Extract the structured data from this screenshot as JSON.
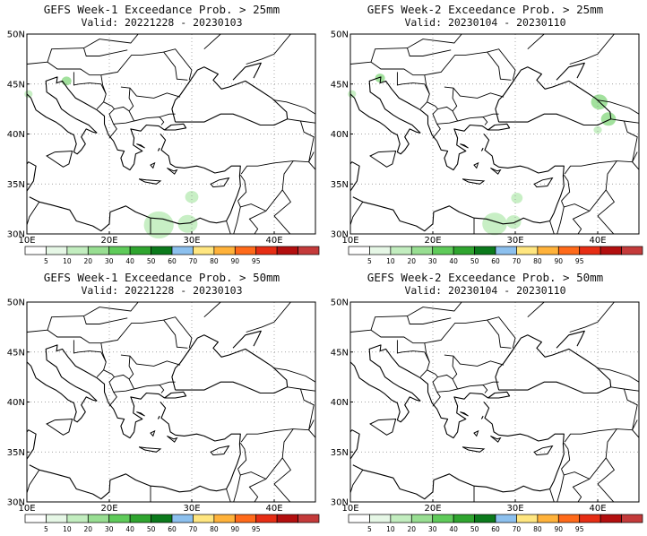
{
  "panels": [
    {
      "title": "GEFS Week-1 Exceedance Prob. > 25mm",
      "valid": "Valid: 20221228 - 20230103",
      "field": "w1_25"
    },
    {
      "title": "GEFS Week-2 Exceedance Prob. > 25mm",
      "valid": "Valid: 20230104 - 20230110",
      "field": "w2_25"
    },
    {
      "title": "GEFS Week-1 Exceedance Prob. > 50mm",
      "valid": "Valid: 20221228 - 20230103",
      "field": "none"
    },
    {
      "title": "GEFS Week-2 Exceedance Prob. > 50mm",
      "valid": "Valid: 20230104 - 20230110",
      "field": "none"
    }
  ],
  "map": {
    "lon_range": [
      10,
      45
    ],
    "lat_range": [
      30,
      50
    ],
    "lon_ticks": [
      {
        "value": 10,
        "label": "10E"
      },
      {
        "value": 20,
        "label": "20E"
      },
      {
        "value": 30,
        "label": "30E"
      },
      {
        "value": 40,
        "label": "40E"
      }
    ],
    "lat_ticks": [
      {
        "value": 30,
        "label": "30N"
      },
      {
        "value": 35,
        "label": "35N"
      },
      {
        "value": 40,
        "label": "40N"
      },
      {
        "value": 45,
        "label": "45N"
      },
      {
        "value": 50,
        "label": "50N"
      }
    ],
    "grid": true
  },
  "colorbar": {
    "labels": [
      "5",
      "10",
      "20",
      "30",
      "40",
      "50",
      "60",
      "70",
      "80",
      "90",
      "95"
    ],
    "colors": [
      "#ffffff",
      "#e6f7e6",
      "#c2edbf",
      "#98de92",
      "#5fcb5a",
      "#2fa52f",
      "#0b7a1c",
      "#8cc0ee",
      "#ffe680",
      "#ffb23a",
      "#ff6a1a",
      "#e62d14",
      "#b30f0f",
      "#c43a3a"
    ]
  },
  "precip_blobs": {
    "w1_25": [
      {
        "lon": 14.8,
        "lat": 45.3,
        "r": 0.6,
        "level": 2
      },
      {
        "lon": 10.2,
        "lat": 44.0,
        "r": 0.5,
        "level": 1
      },
      {
        "lon": 26.0,
        "lat": 30.9,
        "r": 1.8,
        "level": 1
      },
      {
        "lon": 29.5,
        "lat": 31.0,
        "r": 1.2,
        "level": 1
      },
      {
        "lon": 30.0,
        "lat": 33.7,
        "r": 0.8,
        "level": 1
      }
    ],
    "w2_25": [
      {
        "lon": 13.6,
        "lat": 45.6,
        "r": 0.6,
        "level": 2
      },
      {
        "lon": 10.2,
        "lat": 44.0,
        "r": 0.5,
        "level": 1
      },
      {
        "lon": 40.2,
        "lat": 43.2,
        "r": 1.0,
        "level": 2
      },
      {
        "lon": 41.3,
        "lat": 41.5,
        "r": 0.9,
        "level": 2
      },
      {
        "lon": 40.0,
        "lat": 40.4,
        "r": 0.5,
        "level": 1
      },
      {
        "lon": 27.5,
        "lat": 31.0,
        "r": 1.5,
        "level": 1
      },
      {
        "lon": 29.8,
        "lat": 31.2,
        "r": 0.9,
        "level": 1
      },
      {
        "lon": 30.2,
        "lat": 33.6,
        "r": 0.7,
        "level": 1
      }
    ]
  }
}
